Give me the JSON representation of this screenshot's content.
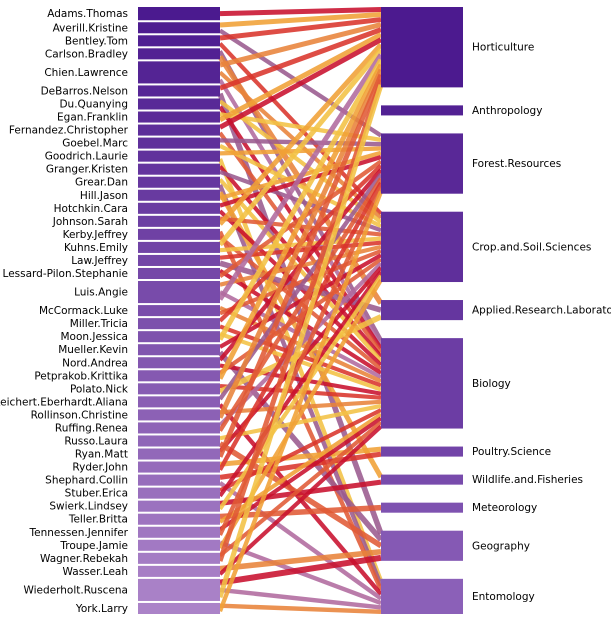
{
  "chart_data": {
    "type": "bipartite",
    "title": "",
    "left_nodes": [
      {
        "name": "Adams.Thomas",
        "weight": 1.2
      },
      {
        "name": "Averill.Kristine",
        "weight": 1.0
      },
      {
        "name": "Bentley.Tom",
        "weight": 1.0
      },
      {
        "name": "Carlson.Bradley",
        "weight": 1.0
      },
      {
        "name": "Chien.Lawrence",
        "weight": 2.0
      },
      {
        "name": "DeBarros.Nelson",
        "weight": 1.0
      },
      {
        "name": "Du.Quanying",
        "weight": 1.0
      },
      {
        "name": "Egan.Franklin",
        "weight": 1.0
      },
      {
        "name": "Fernandez.Christopher",
        "weight": 1.0
      },
      {
        "name": "Goebel.Marc",
        "weight": 1.0
      },
      {
        "name": "Goodrich.Laurie",
        "weight": 1.0
      },
      {
        "name": "Granger.Kristen",
        "weight": 1.0
      },
      {
        "name": "Grear.Dan",
        "weight": 1.0
      },
      {
        "name": "Hill.Jason",
        "weight": 1.0
      },
      {
        "name": "Hotchkin.Cara",
        "weight": 1.0
      },
      {
        "name": "Johnson.Sarah",
        "weight": 1.0
      },
      {
        "name": "Kerby.Jeffrey",
        "weight": 1.0
      },
      {
        "name": "Kuhns.Emily",
        "weight": 1.0
      },
      {
        "name": "Law.Jeffrey",
        "weight": 1.0
      },
      {
        "name": "Lessard-Pilon.Stephanie",
        "weight": 1.0
      },
      {
        "name": "Luis.Angie",
        "weight": 2.0
      },
      {
        "name": "McCormack.Luke",
        "weight": 1.0
      },
      {
        "name": "Miller.Tricia",
        "weight": 1.0
      },
      {
        "name": "Moon.Jessica",
        "weight": 1.0
      },
      {
        "name": "Mueller.Kevin",
        "weight": 1.0
      },
      {
        "name": "Nord.Andrea",
        "weight": 1.0
      },
      {
        "name": "Petprakob.Krittika",
        "weight": 1.0
      },
      {
        "name": "Polato.Nick",
        "weight": 1.0
      },
      {
        "name": "Reichert.Eberhardt.Aliana",
        "weight": 1.0
      },
      {
        "name": "Rollinson.Christine",
        "weight": 1.0
      },
      {
        "name": "Ruffing.Renea",
        "weight": 1.0
      },
      {
        "name": "Russo.Laura",
        "weight": 1.0
      },
      {
        "name": "Ryan.Matt",
        "weight": 1.0
      },
      {
        "name": "Ryder.John",
        "weight": 1.0
      },
      {
        "name": "Shephard.Collin",
        "weight": 1.0
      },
      {
        "name": "Stuber.Erica",
        "weight": 1.0
      },
      {
        "name": "Swierk.Lindsey",
        "weight": 1.0
      },
      {
        "name": "Teller.Britta",
        "weight": 1.0
      },
      {
        "name": "Tennessen.Jennifer",
        "weight": 1.0
      },
      {
        "name": "Troupe.Jamie",
        "weight": 1.0
      },
      {
        "name": "Wagner.Rebekah",
        "weight": 1.0
      },
      {
        "name": "Wasser.Leah",
        "weight": 1.0
      },
      {
        "name": "Wiederholt.Ruscena",
        "weight": 2.0
      },
      {
        "name": "York.Larry",
        "weight": 1.0
      }
    ],
    "right_nodes": [
      {
        "name": "Horticulture",
        "weight": 8
      },
      {
        "name": "Anthropology",
        "weight": 1
      },
      {
        "name": "Forest.Resources",
        "weight": 6
      },
      {
        "name": "Crop.and.Soil.Sciences",
        "weight": 7
      },
      {
        "name": "Applied.Research.Laboratory",
        "weight": 2
      },
      {
        "name": "Biology",
        "weight": 9
      },
      {
        "name": "Poultry.Science",
        "weight": 1
      },
      {
        "name": "Wildlife.and.Fisheries",
        "weight": 1
      },
      {
        "name": "Meteorology",
        "weight": 1
      },
      {
        "name": "Geography",
        "weight": 3
      },
      {
        "name": "Entomology",
        "weight": 3.5
      }
    ],
    "links": [
      [
        0,
        0
      ],
      [
        1,
        0
      ],
      [
        1,
        2
      ],
      [
        2,
        0
      ],
      [
        2,
        3
      ],
      [
        3,
        5
      ],
      [
        3,
        4
      ],
      [
        4,
        0
      ],
      [
        4,
        3
      ],
      [
        4,
        5
      ],
      [
        5,
        0
      ],
      [
        5,
        9
      ],
      [
        6,
        3
      ],
      [
        6,
        5
      ],
      [
        7,
        2
      ],
      [
        7,
        0
      ],
      [
        8,
        0
      ],
      [
        8,
        5
      ],
      [
        9,
        2
      ],
      [
        9,
        3
      ],
      [
        10,
        2
      ],
      [
        10,
        10
      ],
      [
        11,
        5
      ],
      [
        11,
        3
      ],
      [
        12,
        5
      ],
      [
        12,
        10
      ],
      [
        13,
        7
      ],
      [
        13,
        2
      ],
      [
        14,
        2
      ],
      [
        14,
        5
      ],
      [
        15,
        3
      ],
      [
        15,
        0
      ],
      [
        16,
        10
      ],
      [
        16,
        5
      ],
      [
        17,
        0
      ],
      [
        17,
        3
      ],
      [
        18,
        3
      ],
      [
        18,
        4
      ],
      [
        19,
        5
      ],
      [
        19,
        2
      ],
      [
        20,
        3
      ],
      [
        20,
        5
      ],
      [
        20,
        0
      ],
      [
        21,
        5
      ],
      [
        21,
        3
      ],
      [
        22,
        2
      ],
      [
        22,
        5
      ],
      [
        23,
        5
      ],
      [
        23,
        0
      ],
      [
        24,
        3
      ],
      [
        24,
        9
      ],
      [
        25,
        2
      ],
      [
        25,
        5
      ],
      [
        26,
        3
      ],
      [
        26,
        0
      ],
      [
        27,
        5
      ],
      [
        27,
        4
      ],
      [
        28,
        2
      ],
      [
        28,
        10
      ],
      [
        29,
        5
      ],
      [
        29,
        0
      ],
      [
        30,
        3
      ],
      [
        30,
        2
      ],
      [
        31,
        5
      ],
      [
        31,
        9
      ],
      [
        32,
        3
      ],
      [
        32,
        0
      ],
      [
        33,
        6
      ],
      [
        33,
        2
      ],
      [
        34,
        6
      ],
      [
        34,
        10
      ],
      [
        35,
        5
      ],
      [
        35,
        3
      ],
      [
        36,
        7
      ],
      [
        36,
        3
      ],
      [
        37,
        8
      ],
      [
        37,
        5
      ],
      [
        38,
        5
      ],
      [
        38,
        2
      ],
      [
        39,
        10
      ],
      [
        39,
        3
      ],
      [
        40,
        5
      ],
      [
        40,
        0
      ],
      [
        41,
        9
      ],
      [
        41,
        5
      ],
      [
        42,
        9
      ],
      [
        42,
        10
      ],
      [
        42,
        0
      ],
      [
        43,
        10
      ],
      [
        43,
        2
      ]
    ],
    "colors": {
      "left_dark": "#4b1a8f",
      "left_light": "#ab83c8",
      "right_dark": "#4c1a8f",
      "right_light": "#8b60b8",
      "link_palette": [
        "#c8102e",
        "#d9342b",
        "#e05a35",
        "#e8833a",
        "#f0a035",
        "#f3c244",
        "#b06a9e",
        "#9a5a8e"
      ]
    }
  }
}
